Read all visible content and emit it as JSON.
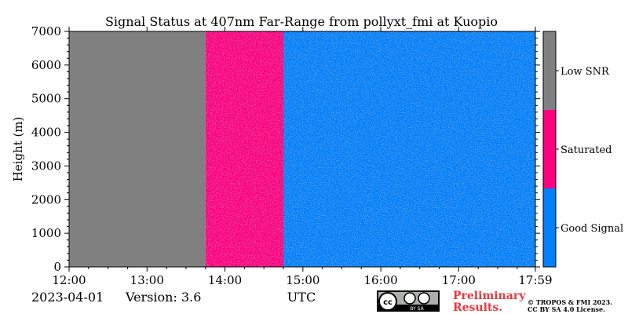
{
  "chart_data": {
    "type": "heatmap",
    "title": "Signal Status at 407nm Far-Range from pollyxt_fmi at Kuopio",
    "xlabel": "UTC",
    "ylabel": "Height (m)",
    "x_range": [
      "12:00",
      "17:59"
    ],
    "x_ticks": [
      "12:00",
      "13:00",
      "14:00",
      "15:00",
      "16:00",
      "17:00",
      "17:59"
    ],
    "ylim": [
      0,
      7000
    ],
    "y_ticks": [
      0,
      1000,
      2000,
      3000,
      4000,
      5000,
      6000,
      7000
    ],
    "categories": [
      "Good Signal",
      "Saturated",
      "Low SNR"
    ],
    "colors": {
      "Good Signal": "#0080ff",
      "Saturated": "#ff0080",
      "Low SNR": "#808080"
    },
    "segments": [
      {
        "start": "12:00",
        "end": "13:45",
        "status": "Low SNR",
        "mix": 0.0
      },
      {
        "start": "13:45",
        "end": "14:45",
        "status": "Saturated",
        "mix": 0.55
      },
      {
        "start": "14:45",
        "end": "17:59",
        "status": "Good Signal",
        "mix": 0.6
      }
    ],
    "grid": false
  },
  "footer": {
    "date": "2023-04-01",
    "version": "Version: 3.6",
    "xaxis_unit": "UTC",
    "preliminary_line1": "Preliminary",
    "preliminary_line2": "Results.",
    "copyright_line1": "© TROPOS & FMI 2023.",
    "copyright_line2": "CC BY SA 4.0 License.",
    "license_badge_text": "BY   SA"
  }
}
